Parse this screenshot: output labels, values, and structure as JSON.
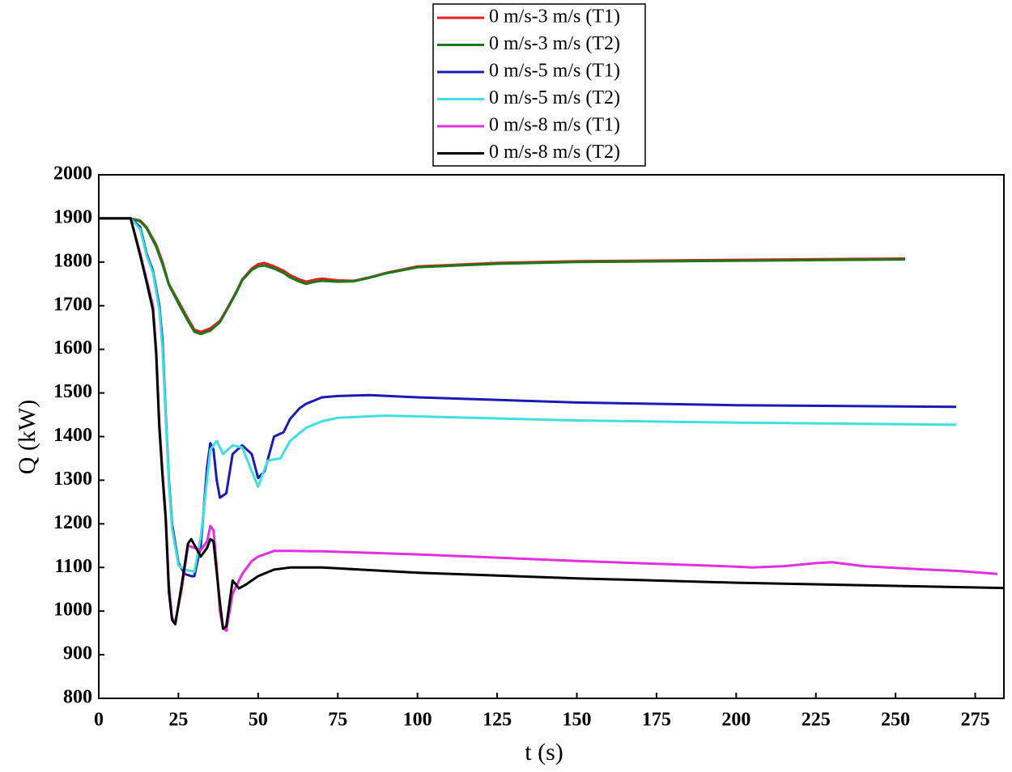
{
  "chart_data": {
    "type": "line",
    "xlabel": "t (s)",
    "ylabel": "Q (kW)",
    "xlim": [
      0,
      284
    ],
    "ylim": [
      800,
      2000
    ],
    "xticks": [
      0,
      25,
      50,
      75,
      100,
      125,
      150,
      175,
      200,
      225,
      250,
      275
    ],
    "yticks": [
      800,
      900,
      1000,
      1100,
      1200,
      1300,
      1400,
      1500,
      1600,
      1700,
      1800,
      1900,
      2000
    ],
    "legend": "top",
    "series": [
      {
        "name": "0 m/s-3 m/s (T1)",
        "color": "#e02020",
        "x": [
          0,
          10,
          13,
          15,
          18,
          20,
          22,
          25,
          28,
          30,
          32,
          35,
          38,
          40,
          43,
          45,
          48,
          50,
          52,
          55,
          58,
          60,
          63,
          65,
          68,
          70,
          75,
          80,
          85,
          90,
          100,
          125,
          150,
          200,
          253
        ],
        "values": [
          1900,
          1900,
          1895,
          1880,
          1840,
          1800,
          1750,
          1710,
          1670,
          1645,
          1640,
          1648,
          1665,
          1690,
          1730,
          1760,
          1785,
          1795,
          1798,
          1790,
          1780,
          1770,
          1760,
          1755,
          1760,
          1762,
          1758,
          1757,
          1765,
          1775,
          1790,
          1798,
          1802,
          1805,
          1808
        ]
      },
      {
        "name": "0 m/s-3 m/s (T2)",
        "color": "#1a7a1a",
        "x": [
          0,
          10,
          13,
          15,
          18,
          20,
          22,
          25,
          28,
          30,
          32,
          35,
          38,
          40,
          43,
          45,
          48,
          50,
          52,
          55,
          58,
          60,
          63,
          65,
          68,
          70,
          75,
          80,
          85,
          90,
          100,
          125,
          150,
          200,
          253
        ],
        "values": [
          1900,
          1900,
          1893,
          1878,
          1835,
          1795,
          1748,
          1705,
          1665,
          1640,
          1635,
          1643,
          1662,
          1688,
          1728,
          1758,
          1782,
          1790,
          1792,
          1785,
          1775,
          1765,
          1755,
          1750,
          1755,
          1757,
          1755,
          1756,
          1764,
          1774,
          1788,
          1796,
          1800,
          1803,
          1806
        ]
      },
      {
        "name": "0 m/s-5 m/s (T1)",
        "color": "#1a1ab4",
        "x": [
          0,
          10,
          13,
          15,
          17,
          19,
          20,
          21,
          22,
          23,
          25,
          27,
          29,
          30,
          32,
          34,
          35,
          36,
          37,
          38,
          40,
          42,
          45,
          48,
          50,
          52,
          55,
          58,
          60,
          63,
          65,
          70,
          75,
          85,
          100,
          150,
          200,
          269
        ],
        "values": [
          1900,
          1900,
          1880,
          1820,
          1780,
          1700,
          1620,
          1450,
          1300,
          1200,
          1110,
          1085,
          1080,
          1080,
          1150,
          1330,
          1385,
          1370,
          1300,
          1260,
          1270,
          1360,
          1380,
          1360,
          1305,
          1320,
          1400,
          1410,
          1440,
          1465,
          1475,
          1490,
          1493,
          1495,
          1490,
          1478,
          1472,
          1468
        ]
      },
      {
        "name": "0 m/s-5 m/s (T2)",
        "color": "#40e0e0",
        "x": [
          0,
          10,
          13,
          15,
          17,
          19,
          20,
          21,
          22,
          23,
          25,
          27,
          30,
          32,
          35,
          37,
          39,
          42,
          45,
          48,
          50,
          53,
          57,
          60,
          65,
          70,
          75,
          90,
          150,
          200,
          269
        ],
        "values": [
          1900,
          1900,
          1875,
          1815,
          1775,
          1690,
          1600,
          1440,
          1290,
          1190,
          1105,
          1095,
          1090,
          1170,
          1370,
          1390,
          1360,
          1380,
          1375,
          1320,
          1285,
          1345,
          1350,
          1390,
          1420,
          1435,
          1443,
          1448,
          1437,
          1432,
          1427
        ]
      },
      {
        "name": "0 m/s-8 m/s (T1)",
        "color": "#e030e0",
        "x": [
          0,
          10,
          13,
          15,
          17,
          18,
          19,
          20,
          21,
          22,
          23,
          24,
          26,
          28,
          30,
          32,
          34,
          35,
          36,
          37,
          38,
          39,
          40,
          42,
          45,
          48,
          50,
          55,
          60,
          70,
          100,
          150,
          200,
          205,
          215,
          225,
          230,
          240,
          260,
          270,
          282
        ],
        "values": [
          1900,
          1900,
          1820,
          1760,
          1700,
          1600,
          1430,
          1320,
          1220,
          1060,
          985,
          975,
          1050,
          1150,
          1145,
          1140,
          1160,
          1195,
          1185,
          1100,
          1000,
          960,
          955,
          1040,
          1085,
          1115,
          1125,
          1138,
          1138,
          1137,
          1130,
          1115,
          1102,
          1100,
          1103,
          1110,
          1112,
          1103,
          1095,
          1092,
          1085
        ]
      },
      {
        "name": "0 m/s-8 m/s (T2)",
        "color": "#000000",
        "x": [
          0,
          10,
          13,
          15,
          17,
          18,
          19,
          20,
          21,
          22,
          23,
          24,
          26,
          28,
          29,
          32,
          34,
          35,
          36,
          38,
          39,
          40,
          42,
          44,
          46,
          50,
          55,
          60,
          70,
          100,
          150,
          200,
          284
        ],
        "values": [
          1900,
          1900,
          1815,
          1755,
          1690,
          1590,
          1420,
          1310,
          1210,
          1045,
          980,
          970,
          1060,
          1155,
          1165,
          1125,
          1145,
          1165,
          1160,
          1020,
          960,
          965,
          1070,
          1052,
          1060,
          1080,
          1095,
          1100,
          1100,
          1088,
          1075,
          1065,
          1053
        ]
      }
    ]
  }
}
